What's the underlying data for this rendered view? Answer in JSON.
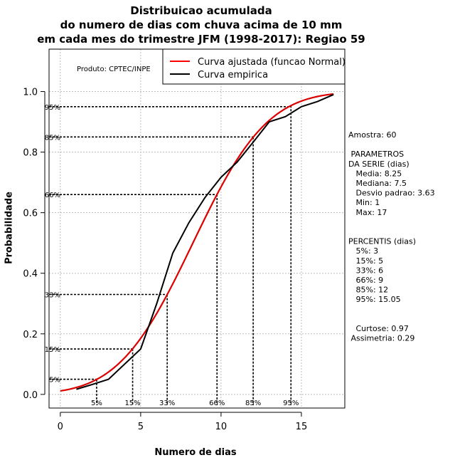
{
  "chart_data": {
    "type": "line",
    "title_lines": [
      "Distribuicao acumulada",
      "do numero de dias com chuva acima de 10 mm",
      "em cada mes do trimestre JFM (1998-2017): Regiao 59"
    ],
    "xlabel": "Numero de dias",
    "ylabel": "Probabilidade",
    "xlim": [
      -0.7,
      17.7
    ],
    "ylim": [
      -0.045,
      1.14
    ],
    "xticks": [
      0,
      5,
      10,
      15
    ],
    "yticks": [
      0.0,
      0.2,
      0.4,
      0.6,
      0.8,
      1.0
    ],
    "ytick_labels": [
      "0.0",
      "0.2",
      "0.4",
      "0.6",
      "0.8",
      "1.0"
    ],
    "grid": true,
    "product_label": "Produto: CPTEC/INPE",
    "legend": {
      "position": "top-right",
      "entries": [
        {
          "name": "Curva ajustada (funcao Normal)",
          "color": "#ff0000"
        },
        {
          "name": "Curva empirica",
          "color": "#000000"
        }
      ]
    },
    "series": [
      {
        "name": "Curva ajustada (funcao Normal)",
        "color": "#dd0000",
        "mean": 8.25,
        "sd": 3.63,
        "x_range": [
          0,
          17
        ]
      },
      {
        "name": "Curva empirica",
        "color": "#000000",
        "x": [
          1,
          2,
          3,
          4,
          5,
          6,
          7,
          8,
          9,
          10,
          11,
          12,
          13,
          14,
          15,
          16,
          17
        ],
        "y": [
          0.017,
          0.033,
          0.05,
          0.1,
          0.15,
          0.3,
          0.467,
          0.567,
          0.65,
          0.717,
          0.767,
          0.833,
          0.9,
          0.917,
          0.95,
          0.967,
          0.99
        ]
      }
    ],
    "percentile_guides": [
      {
        "label": "5%",
        "x": 2.26,
        "p": 0.05
      },
      {
        "label": "15%",
        "x": 4.5,
        "p": 0.15
      },
      {
        "label": "33%",
        "x": 6.65,
        "p": 0.33
      },
      {
        "label": "66%",
        "x": 9.75,
        "p": 0.66
      },
      {
        "label": "85%",
        "x": 12.0,
        "p": 0.85
      },
      {
        "label": "95%",
        "x": 14.35,
        "p": 0.95
      }
    ]
  },
  "stats_panel": {
    "lines": [
      "Amostra: 60",
      "",
      " PARAMETROS",
      "DA SERIE (dias)",
      "   Media: 8.25",
      "   Mediana: 7.5",
      "   Desvio padrao: 3.63",
      "   Min: 1",
      "   Max: 17",
      "",
      "",
      "PERCENTIS (dias)",
      "   5%: 3",
      "   15%: 5",
      "   33%: 6",
      "   66%: 9",
      "   85%: 12",
      "   95%: 15.05",
      "",
      "",
      "   Curtose: 0.97",
      " Assimetria: 0.29"
    ]
  }
}
